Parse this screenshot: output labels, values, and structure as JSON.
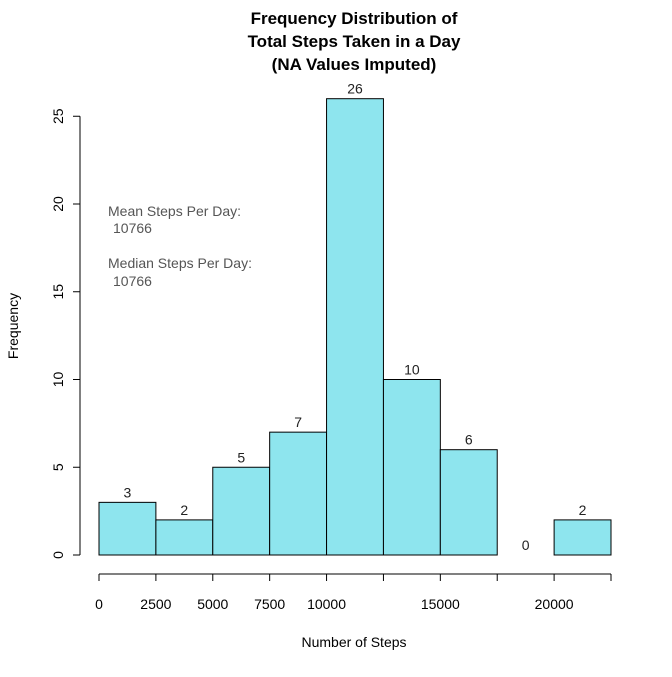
{
  "chart_data": {
    "type": "bar",
    "title_lines": [
      "Frequency Distribution of",
      "Total Steps Taken in a Day",
      "(NA Values Imputed)"
    ],
    "xlabel": "Number of Steps",
    "ylabel": "Frequency",
    "bins": [
      {
        "from": 0,
        "to": 2500,
        "count": 3
      },
      {
        "from": 2500,
        "to": 5000,
        "count": 2
      },
      {
        "from": 5000,
        "to": 7500,
        "count": 5
      },
      {
        "from": 7500,
        "to": 10000,
        "count": 7
      },
      {
        "from": 10000,
        "to": 12500,
        "count": 26
      },
      {
        "from": 12500,
        "to": 15000,
        "count": 10
      },
      {
        "from": 15000,
        "to": 17500,
        "count": 6
      },
      {
        "from": 17500,
        "to": 20000,
        "count": 0
      },
      {
        "from": 20000,
        "to": 22500,
        "count": 2
      }
    ],
    "xlim": [
      0,
      22500
    ],
    "ylim": [
      0,
      26
    ],
    "x_ticks": [
      0,
      2500,
      5000,
      7500,
      10000,
      12500,
      15000,
      17500,
      20000,
      22500
    ],
    "x_tick_labels": [
      "0",
      "2500",
      "5000",
      "7500",
      "10000",
      "15000",
      "20000"
    ],
    "x_tick_label_values": [
      0,
      2500,
      5000,
      7500,
      10000,
      15000,
      20000
    ],
    "y_ticks": [
      0,
      5,
      10,
      15,
      20,
      25
    ],
    "y_tick_labels": [
      "0",
      "5",
      "10",
      "15",
      "20",
      "25"
    ],
    "bar_color": "#8ee5ee",
    "grid": false,
    "annotations": [
      {
        "label": "Mean Steps Per Day:",
        "value": "10766"
      },
      {
        "label": "Median Steps Per Day:",
        "value": "10766"
      }
    ]
  }
}
